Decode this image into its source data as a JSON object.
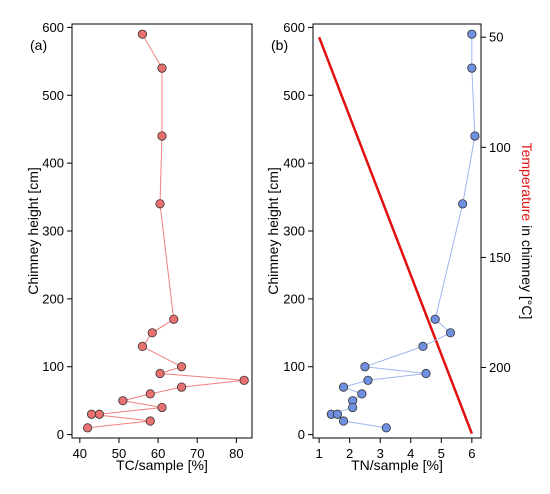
{
  "chart_data": [
    {
      "type": "line",
      "panel_label": "(a)",
      "xlabel": "TC/sample [%]",
      "ylabel": "Chimney height [cm]",
      "xlim": [
        38,
        84
      ],
      "ylim": [
        -5,
        605
      ],
      "xticks": [
        40,
        50,
        60,
        70,
        80
      ],
      "yticks": [
        0,
        100,
        200,
        300,
        400,
        500,
        600
      ],
      "series": [
        {
          "color": "#f08080",
          "marker_fill": "#e87070",
          "x": [
            56,
            61,
            61,
            60.5,
            64,
            58.5,
            56,
            66,
            60.5,
            82,
            66,
            58,
            51,
            61,
            45,
            43,
            58,
            42
          ],
          "y": [
            590,
            540,
            440,
            340,
            170,
            150,
            130,
            100,
            90,
            80,
            70,
            60,
            50,
            40,
            30,
            30,
            20,
            10
          ]
        }
      ]
    },
    {
      "type": "line",
      "panel_label": "(b)",
      "xlabel": "TN/sample [%]",
      "ylabel": "Chimney height [cm]",
      "xlim": [
        0.8,
        6.3
      ],
      "ylim": [
        -5,
        605
      ],
      "xticks": [
        1,
        2,
        3,
        4,
        5,
        6
      ],
      "yticks": [
        0,
        100,
        200,
        300,
        400,
        500,
        600
      ],
      "series": [
        {
          "color": "#9fb6ef",
          "marker_fill": "#6f8fe0",
          "x": [
            6.0,
            6.0,
            6.1,
            5.7,
            4.8,
            5.3,
            4.4,
            2.5,
            4.5,
            2.6,
            1.8,
            2.4,
            2.1,
            2.1,
            1.4,
            1.6,
            1.8,
            3.2
          ],
          "y": [
            590,
            540,
            440,
            340,
            170,
            150,
            130,
            100,
            90,
            80,
            70,
            60,
            50,
            40,
            30,
            30,
            20,
            10
          ]
        }
      ],
      "right_axis": {
        "label_red": "Temperature",
        "label_rest": " in chimney [°C]",
        "label_red_color": "#e01010",
        "ticks": [
          50,
          100,
          150,
          200
        ],
        "range_at_top": 44,
        "range_at_bottom": 232
      },
      "temperature_line": {
        "color": "#e01010",
        "points": [
          [
            1.0,
            50
          ],
          [
            6.0,
            230
          ]
        ]
      }
    }
  ]
}
